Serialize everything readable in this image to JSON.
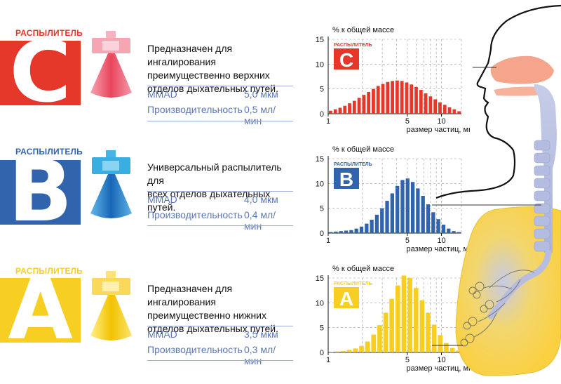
{
  "colors": {
    "red": "#e5382b",
    "blue": "#3264ad",
    "yellow": "#f6cf22",
    "spec_text": "#5b78b5"
  },
  "nebulizers": [
    {
      "label": "РАСПЫЛИТЕЛЬ",
      "letter": "C",
      "color": "#e5382b",
      "description": [
        "Предназначен для ингалирования",
        "преимущественно верхних",
        "отделов дыхательных путей."
      ],
      "specs": [
        {
          "name": "MMAD",
          "value": "5,0 мкм"
        },
        {
          "name": "Производительность",
          "value": "0,5 мл/мин"
        }
      ]
    },
    {
      "label": "РАСПЫЛИТЕЛЬ",
      "letter": "B",
      "color": "#3264ad",
      "description": [
        "Универсальный распылитель для",
        "всех отделов дыхательных путей."
      ],
      "specs": [
        {
          "name": "MMAD",
          "value": "4,0 мкм"
        },
        {
          "name": "Производительность",
          "value": "0,4 мл/мин"
        }
      ]
    },
    {
      "label": "РАСПЫЛИТЕЛЬ",
      "letter": "A",
      "color": "#f6cf22",
      "description": [
        "Предназначен для ингалирования",
        "преимущественно нижних",
        "отделов дыхательных путей."
      ],
      "specs": [
        {
          "name": "MMAD",
          "value": "3,5 мкм"
        },
        {
          "name": "Производительность",
          "value": "0,3 мл/мин"
        }
      ]
    }
  ],
  "chart_data": [
    {
      "type": "bar",
      "title": "% к общей массе",
      "xlabel": "размер частиц, мкм",
      "x_scale": "log",
      "xlim": [
        1,
        15
      ],
      "ylim": [
        0,
        15
      ],
      "y_ticks": [
        "0",
        "5",
        "10",
        "15"
      ],
      "x_ticks": [
        "1",
        "5",
        "10"
      ],
      "grid": true,
      "legend": {
        "label": "РАСПЫЛИТЕЛЬ",
        "letter": "C"
      },
      "color": "#e5382b",
      "series": [
        {
          "values": [
            0.6,
            0.9,
            1.2,
            1.6,
            2.1,
            2.6,
            3.2,
            3.8,
            4.4,
            5.0,
            5.6,
            6.0,
            6.4,
            6.6,
            6.7,
            6.6,
            6.3,
            5.9,
            5.4,
            4.8,
            4.1,
            3.5,
            2.9,
            2.3,
            1.8,
            1.3,
            0.9,
            0.5
          ]
        }
      ]
    },
    {
      "type": "bar",
      "title": "% к общей массе",
      "xlabel": "размер частиц, мкм",
      "x_scale": "log",
      "xlim": [
        1,
        15
      ],
      "ylim": [
        0,
        15
      ],
      "y_ticks": [
        "0",
        "5",
        "10",
        "15"
      ],
      "x_ticks": [
        "1",
        "5",
        "10"
      ],
      "grid": true,
      "legend": {
        "label": "РАСПЫЛИТЕЛЬ",
        "letter": "B"
      },
      "color": "#3264ad",
      "series": [
        {
          "values": [
            0.2,
            0.3,
            0.4,
            0.5,
            0.6,
            0.9,
            1.3,
            1.9,
            2.7,
            3.7,
            5.0,
            6.5,
            8.0,
            9.5,
            10.7,
            11.0,
            10.3,
            9.0,
            7.5,
            5.8,
            4.2,
            2.8,
            1.7,
            0.9,
            0.4,
            0.2
          ]
        }
      ]
    },
    {
      "type": "bar",
      "title": "% к общей массе",
      "xlabel": "размер частиц, мкм",
      "x_scale": "log",
      "xlim": [
        1,
        15
      ],
      "ylim": [
        0,
        15
      ],
      "y_ticks": [
        "0",
        "5",
        "10",
        "15"
      ],
      "x_ticks": [
        "1",
        "5",
        "10"
      ],
      "grid": true,
      "legend": {
        "label": "РАСПЫЛИТЕЛЬ",
        "letter": "A"
      },
      "color": "#f6cf22",
      "series": [
        {
          "values": [
            0.1,
            0.2,
            0.3,
            0.5,
            0.8,
            1.3,
            2.2,
            3.6,
            5.5,
            8.0,
            10.8,
            13.5,
            15.5,
            15.0,
            13.0,
            10.5,
            8.0,
            5.6,
            3.5,
            1.9,
            0.9,
            0.4
          ]
        }
      ]
    }
  ]
}
